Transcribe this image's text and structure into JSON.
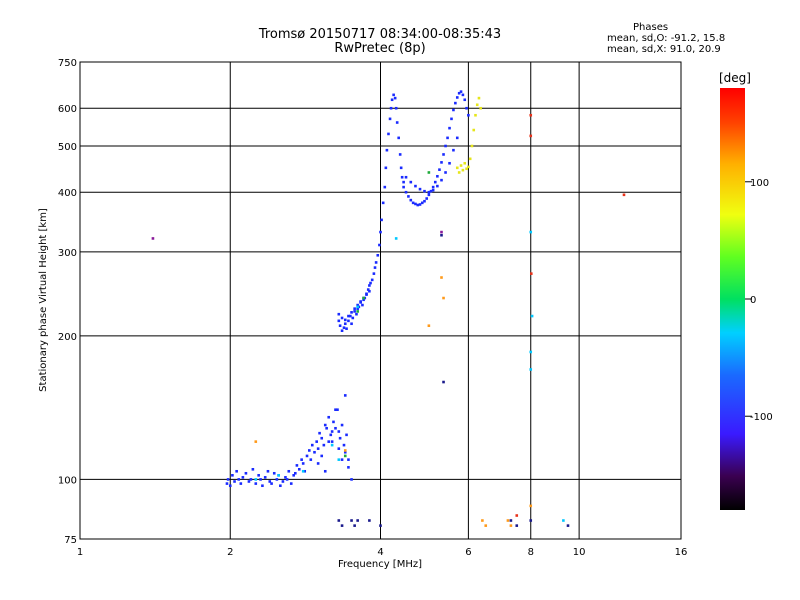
{
  "header": {
    "title": "Tromsø 20150717 08:34:00-08:35:43",
    "subtitle": "RwPretec (8p)"
  },
  "phases_box": {
    "title": "Phases",
    "line_o": "mean, sd,O: -91.2, 15.8",
    "line_x": "mean, sd,X:  91.0, 20.9"
  },
  "chart_data": {
    "type": "scatter",
    "xlabel": "Frequency [MHz]",
    "ylabel": "Stationary phase Virtual Height [km]",
    "x_scale": "log",
    "y_scale": "log",
    "xlim": [
      1,
      16
    ],
    "ylim": [
      75,
      750
    ],
    "x_ticks": [
      1,
      2,
      4,
      6,
      8,
      10,
      16
    ],
    "x_tick_labels": [
      "1",
      "2",
      "4",
      "6",
      "8",
      "10",
      "16"
    ],
    "y_ticks": [
      75,
      100,
      200,
      300,
      400,
      500,
      600,
      750
    ],
    "y_tick_labels": [
      "75",
      "100",
      "200",
      "300",
      "400",
      "500",
      "600",
      "750"
    ],
    "grid": true,
    "colorbar": {
      "label": "[deg]",
      "range": [
        -180,
        180
      ],
      "ticks": [
        -100,
        0,
        100
      ],
      "tick_labels": [
        "-100",
        "0",
        "100"
      ]
    },
    "colors": {
      "blue": "#1a2bff",
      "navy": "#1a1a8c",
      "cyan": "#00c8ff",
      "green": "#1faa3a",
      "yellow": "#e6e61a",
      "orange": "#ff9a1a",
      "red": "#e8321a",
      "purple": "#8a1a9a"
    },
    "series": [
      {
        "color": "blue",
        "x": [
          1.97,
          1.98,
          2.0,
          2.02,
          2.04,
          2.06,
          2.08,
          2.1,
          2.12,
          2.15,
          2.18,
          2.2,
          2.22,
          2.25,
          2.28,
          2.3,
          2.32,
          2.35,
          2.38,
          2.4,
          2.42,
          2.45,
          2.48,
          2.5,
          2.52,
          2.55,
          2.58,
          2.6,
          2.62,
          2.65,
          2.68,
          2.7,
          2.72,
          2.75,
          2.78,
          2.8,
          2.82,
          2.85,
          2.88,
          2.9,
          2.92,
          2.95,
          2.98,
          3.0,
          3.02,
          3.05,
          3.08,
          3.1,
          3.12,
          3.15,
          3.18,
          3.2,
          3.22,
          3.25,
          3.28,
          3.3,
          3.32,
          3.35,
          3.38,
          3.4,
          3.42,
          3.45
        ],
        "y": [
          98,
          100,
          97,
          102,
          99,
          104,
          100,
          98,
          101,
          103,
          99,
          100,
          105,
          98,
          102,
          100,
          97,
          101,
          104,
          99,
          98,
          103,
          100,
          102,
          97,
          99,
          101,
          100,
          104,
          98,
          102,
          103,
          107,
          105,
          110,
          108,
          104,
          112,
          115,
          110,
          118,
          114,
          120,
          116,
          125,
          122,
          118,
          130,
          128,
          135,
          124,
          120,
          132,
          128,
          140,
          126,
          122,
          130,
          118,
          114,
          124,
          110
        ]
      },
      {
        "color": "blue",
        "x": [
          3.0,
          3.05,
          3.1,
          3.15,
          3.2,
          3.25,
          3.3,
          3.35,
          3.4,
          3.45,
          3.5
        ],
        "y": [
          108,
          112,
          104,
          120,
          126,
          140,
          116,
          110,
          150,
          106,
          100
        ]
      },
      {
        "color": "blue",
        "x": [
          3.3,
          3.32,
          3.35,
          3.38,
          3.4,
          3.42,
          3.45,
          3.48,
          3.5,
          3.52,
          3.55,
          3.58,
          3.6,
          3.62,
          3.65,
          3.68,
          3.7,
          3.72,
          3.75,
          3.78,
          3.8,
          3.82,
          3.85,
          3.88,
          3.9,
          3.92,
          3.95,
          3.98,
          4.0,
          4.02,
          4.05,
          4.08,
          4.1,
          4.12,
          4.15,
          4.18,
          4.2,
          4.22,
          4.25,
          4.28,
          4.3,
          4.32,
          4.35,
          4.38,
          4.4,
          4.42,
          4.45
        ],
        "y": [
          215,
          210,
          205,
          208,
          212,
          207,
          215,
          220,
          212,
          218,
          225,
          222,
          228,
          230,
          235,
          232,
          238,
          240,
          245,
          250,
          255,
          258,
          262,
          270,
          278,
          285,
          295,
          310,
          330,
          350,
          380,
          410,
          450,
          490,
          530,
          570,
          600,
          625,
          640,
          630,
          600,
          560,
          520,
          480,
          450,
          430,
          420
        ]
      },
      {
        "color": "blue",
        "x": [
          3.3,
          3.35,
          3.4,
          3.45,
          3.5,
          3.55,
          3.6,
          3.65,
          3.7,
          3.75,
          3.8
        ],
        "y": [
          222,
          218,
          216,
          220,
          224,
          228,
          232,
          236,
          240,
          244,
          248
        ]
      },
      {
        "color": "blue",
        "x": [
          4.45,
          4.5,
          4.55,
          4.6,
          4.65,
          4.7,
          4.75,
          4.8,
          4.85,
          4.9,
          4.95,
          5.0,
          5.05,
          5.1,
          5.15,
          5.2,
          5.25,
          5.3,
          5.35,
          5.4,
          5.45,
          5.5,
          5.55,
          5.6,
          5.65,
          5.7,
          5.75,
          5.8,
          5.85,
          5.9,
          5.95,
          6.0
        ],
        "y": [
          410,
          400,
          392,
          385,
          380,
          378,
          376,
          377,
          380,
          383,
          388,
          395,
          402,
          410,
          420,
          432,
          446,
          462,
          480,
          500,
          520,
          545,
          570,
          595,
          615,
          632,
          645,
          650,
          640,
          625,
          600,
          580
        ]
      },
      {
        "color": "blue",
        "x": [
          4.5,
          4.6,
          4.7,
          4.8,
          4.9,
          5.0,
          5.1,
          5.2,
          5.3,
          5.4,
          5.5,
          5.6,
          5.7
        ],
        "y": [
          430,
          420,
          412,
          406,
          402,
          400,
          404,
          412,
          424,
          440,
          460,
          490,
          520
        ]
      },
      {
        "color": "yellow",
        "x": [
          5.7,
          5.75,
          5.8,
          5.85,
          5.9,
          5.95,
          6.0,
          6.05,
          6.1,
          6.15,
          6.2,
          6.25,
          6.3,
          6.35
        ],
        "y": [
          450,
          440,
          455,
          445,
          460,
          448,
          452,
          470,
          500,
          540,
          580,
          610,
          630,
          600
        ]
      },
      {
        "color": "navy",
        "x": [
          3.3,
          3.35,
          3.5,
          3.55,
          3.6,
          3.8,
          4.0,
          5.3,
          5.35,
          7.3,
          7.5,
          8.0,
          9.5
        ],
        "y": [
          82,
          80,
          82,
          80,
          82,
          82,
          80,
          325,
          160,
          82,
          80,
          82,
          80
        ]
      },
      {
        "color": "cyan",
        "x": [
          2.25,
          2.5,
          2.8,
          3.2,
          3.3,
          3.6,
          4.3,
          8.0,
          8.0,
          8.0,
          8.05,
          9.3
        ],
        "y": [
          100,
          102,
          104,
          118,
          110,
          230,
          320,
          330,
          185,
          170,
          220,
          82
        ]
      },
      {
        "color": "green",
        "x": [
          3.4,
          3.6,
          3.7,
          5.0
        ],
        "y": [
          112,
          225,
          240,
          440
        ]
      },
      {
        "color": "orange",
        "x": [
          2.25,
          3.4,
          5.3,
          5.35,
          5.0,
          6.4,
          6.5,
          7.2,
          7.3,
          8.0
        ],
        "y": [
          120,
          115,
          265,
          240,
          210,
          82,
          80,
          82,
          80,
          88
        ]
      },
      {
        "color": "red",
        "x": [
          8.0,
          8.0,
          8.02,
          12.3,
          7.5
        ],
        "y": [
          580,
          525,
          270,
          395,
          84
        ]
      },
      {
        "color": "purple",
        "x": [
          1.4,
          5.3
        ],
        "y": [
          320,
          330
        ]
      }
    ]
  }
}
